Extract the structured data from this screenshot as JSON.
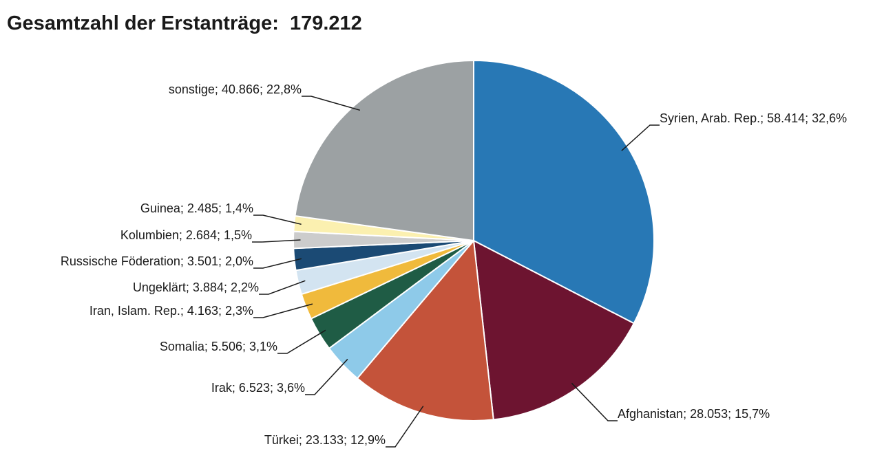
{
  "chart_data": {
    "type": "pie",
    "title": "Gesamtzahl der Erstanträge:",
    "total": "179.212",
    "slices": [
      {
        "name": "Syrien, Arab. Rep.",
        "value": 58414,
        "value_label": "58.414",
        "percent_label": "32,6%",
        "color": "#2878b5"
      },
      {
        "name": "Afghanistan",
        "value": 28053,
        "value_label": "28.053",
        "percent_label": "15,7%",
        "color": "#6d1430"
      },
      {
        "name": "Türkei",
        "value": 23133,
        "value_label": "23.133",
        "percent_label": "12,9%",
        "color": "#c4533a"
      },
      {
        "name": "Irak",
        "value": 6523,
        "value_label": "6.523",
        "percent_label": "3,6%",
        "color": "#8ecae9"
      },
      {
        "name": "Somalia",
        "value": 5506,
        "value_label": "5.506",
        "percent_label": "3,1%",
        "color": "#1f5c45"
      },
      {
        "name": "Iran, Islam. Rep.",
        "value": 4163,
        "value_label": "4.163",
        "percent_label": "2,3%",
        "color": "#f0ba3c"
      },
      {
        "name": "Ungeklärt",
        "value": 3884,
        "value_label": "3.884",
        "percent_label": "2,2%",
        "color": "#d3e4f1"
      },
      {
        "name": "Russische Föderation",
        "value": 3501,
        "value_label": "3.501",
        "percent_label": "2,0%",
        "color": "#1b4a74"
      },
      {
        "name": "Kolumbien",
        "value": 2684,
        "value_label": "2.684",
        "percent_label": "1,5%",
        "color": "#cccccc"
      },
      {
        "name": "Guinea",
        "value": 2485,
        "value_label": "2.485",
        "percent_label": "1,4%",
        "color": "#fbf0b0"
      },
      {
        "name": "sonstige",
        "value": 40866,
        "value_label": "40.866",
        "percent_label": "22,8%",
        "color": "#9ca1a3"
      }
    ]
  }
}
